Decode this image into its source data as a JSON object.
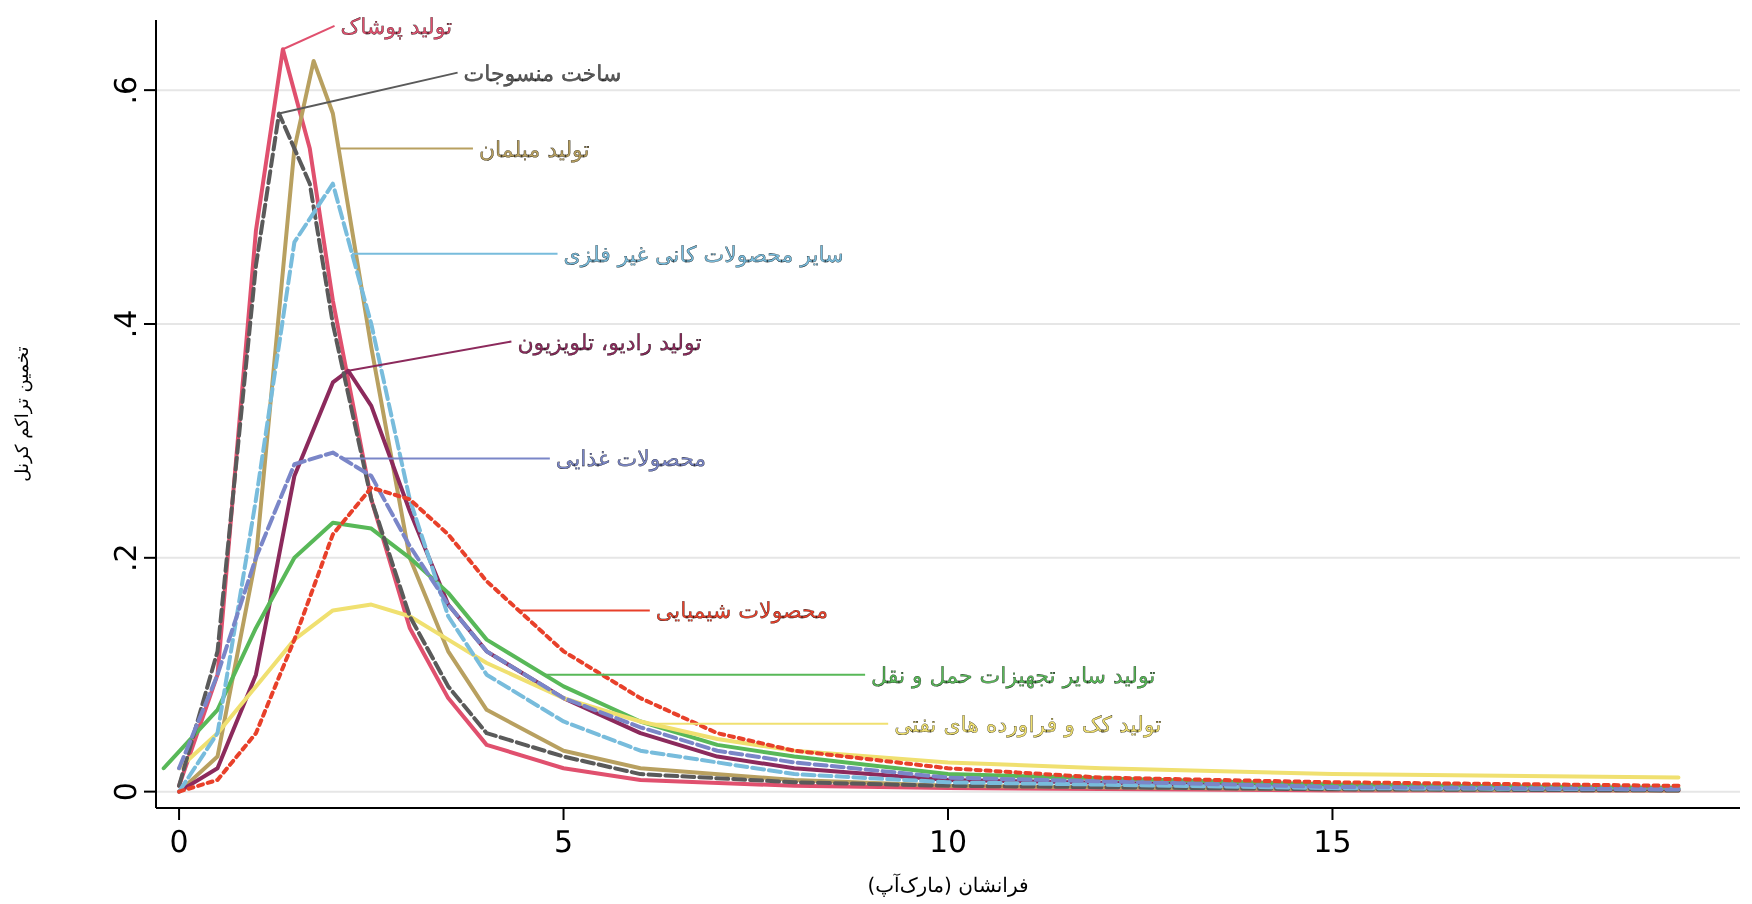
{
  "chart_data": {
    "type": "line",
    "xlabel": "فرانشان (مارک‌آپ)",
    "ylabel": "تخمین تراکم کرنل",
    "xlim": [
      -0.3,
      20.3
    ],
    "ylim": [
      -0.014,
      0.66
    ],
    "xticks": [
      0,
      5,
      10,
      15
    ],
    "yticks": [
      {
        "value": 0,
        "label": "0"
      },
      {
        "value": 0.2,
        "label": ".2"
      },
      {
        "value": 0.4,
        "label": ".4"
      },
      {
        "value": 0.6,
        "label": ".6"
      }
    ],
    "grid": "y",
    "series": [
      {
        "name": "تولید پوشاک",
        "color": "#e0506e",
        "line_style": "solid",
        "x": [
          0,
          0.5,
          1,
          1.35,
          1.7,
          2,
          2.5,
          3,
          3.5,
          4,
          5,
          6,
          8,
          10,
          15,
          19.5
        ],
        "values": [
          0.005,
          0.1,
          0.48,
          0.635,
          0.55,
          0.42,
          0.25,
          0.14,
          0.08,
          0.04,
          0.02,
          0.01,
          0.005,
          0.003,
          0.001,
          0.001
        ]
      },
      {
        "name": "ساخت منسوجات",
        "color": "#5a5a5a",
        "line_style": "dashed",
        "x": [
          0,
          0.5,
          1,
          1.3,
          1.7,
          2,
          2.5,
          3,
          3.5,
          4,
          5,
          6,
          8,
          10,
          15,
          19.5
        ],
        "values": [
          0.005,
          0.12,
          0.45,
          0.58,
          0.52,
          0.4,
          0.25,
          0.15,
          0.09,
          0.05,
          0.03,
          0.015,
          0.008,
          0.005,
          0.002,
          0.001
        ]
      },
      {
        "name": "تولید مبلمان",
        "color": "#b8a060",
        "line_style": "solid",
        "x": [
          0,
          0.5,
          1,
          1.5,
          1.75,
          2,
          2.5,
          3,
          3.5,
          4,
          5,
          6,
          8,
          10,
          15,
          19.5
        ],
        "values": [
          0,
          0.03,
          0.2,
          0.55,
          0.625,
          0.58,
          0.38,
          0.2,
          0.12,
          0.07,
          0.035,
          0.02,
          0.01,
          0.005,
          0.002,
          0.001
        ]
      },
      {
        "name": "سایر محصولات کانی غیر فلزی",
        "color": "#78bcdc",
        "line_style": "dashed",
        "x": [
          0,
          0.5,
          1,
          1.5,
          2,
          2.5,
          3,
          3.5,
          4,
          5,
          6,
          7,
          8,
          10,
          15,
          19.5
        ],
        "values": [
          0,
          0.05,
          0.25,
          0.47,
          0.52,
          0.4,
          0.25,
          0.15,
          0.1,
          0.06,
          0.035,
          0.025,
          0.015,
          0.008,
          0.003,
          0.002
        ]
      },
      {
        "name": "تولید رادیو، تلویزیون",
        "color": "#8c2a5c",
        "line_style": "solid",
        "x": [
          0,
          0.5,
          1,
          1.5,
          2,
          2.2,
          2.5,
          3,
          3.5,
          4,
          5,
          6,
          7,
          8,
          10,
          15,
          19.5
        ],
        "values": [
          0,
          0.02,
          0.1,
          0.27,
          0.35,
          0.36,
          0.33,
          0.24,
          0.16,
          0.12,
          0.08,
          0.05,
          0.03,
          0.02,
          0.01,
          0.004,
          0.002
        ]
      },
      {
        "name": "محصولات غذایی",
        "color": "#7a86c8",
        "line_style": "dashed",
        "x": [
          0,
          0.5,
          1,
          1.5,
          2,
          2.5,
          3,
          3.5,
          4,
          5,
          6,
          7,
          8,
          10,
          15,
          19.5
        ],
        "values": [
          0.02,
          0.1,
          0.2,
          0.28,
          0.29,
          0.27,
          0.21,
          0.16,
          0.12,
          0.08,
          0.055,
          0.035,
          0.025,
          0.012,
          0.004,
          0.002
        ]
      },
      {
        "name": "محصولات شیمیایی",
        "color": "#e8402a",
        "line_style": "dotted",
        "x": [
          0,
          0.5,
          1,
          1.5,
          2,
          2.5,
          3,
          3.5,
          4,
          5,
          6,
          7,
          8,
          10,
          12,
          15,
          19.5
        ],
        "values": [
          0,
          0.01,
          0.05,
          0.13,
          0.22,
          0.26,
          0.25,
          0.22,
          0.18,
          0.12,
          0.08,
          0.05,
          0.035,
          0.02,
          0.012,
          0.008,
          0.005
        ]
      },
      {
        "name": "تولید سایر تجهیزات حمل و نقل",
        "color": "#58b858",
        "line_style": "solid",
        "x": [
          -0.2,
          0.5,
          1,
          1.5,
          2,
          2.5,
          3,
          3.5,
          4,
          5,
          6,
          7,
          8,
          10,
          15,
          19.5
        ],
        "values": [
          0.02,
          0.07,
          0.14,
          0.2,
          0.23,
          0.225,
          0.2,
          0.17,
          0.13,
          0.09,
          0.06,
          0.04,
          0.03,
          0.015,
          0.006,
          0.003
        ]
      },
      {
        "name": "تولید کک و فراورده های نفتی",
        "color": "#f0e070",
        "line_style": "solid",
        "x": [
          0,
          0.5,
          1,
          1.5,
          2,
          2.5,
          3,
          3.5,
          4,
          5,
          6,
          7,
          8,
          10,
          12,
          15,
          19.5
        ],
        "values": [
          0.02,
          0.05,
          0.09,
          0.13,
          0.155,
          0.16,
          0.15,
          0.13,
          0.11,
          0.08,
          0.06,
          0.045,
          0.035,
          0.025,
          0.02,
          0.015,
          0.012
        ]
      }
    ]
  }
}
